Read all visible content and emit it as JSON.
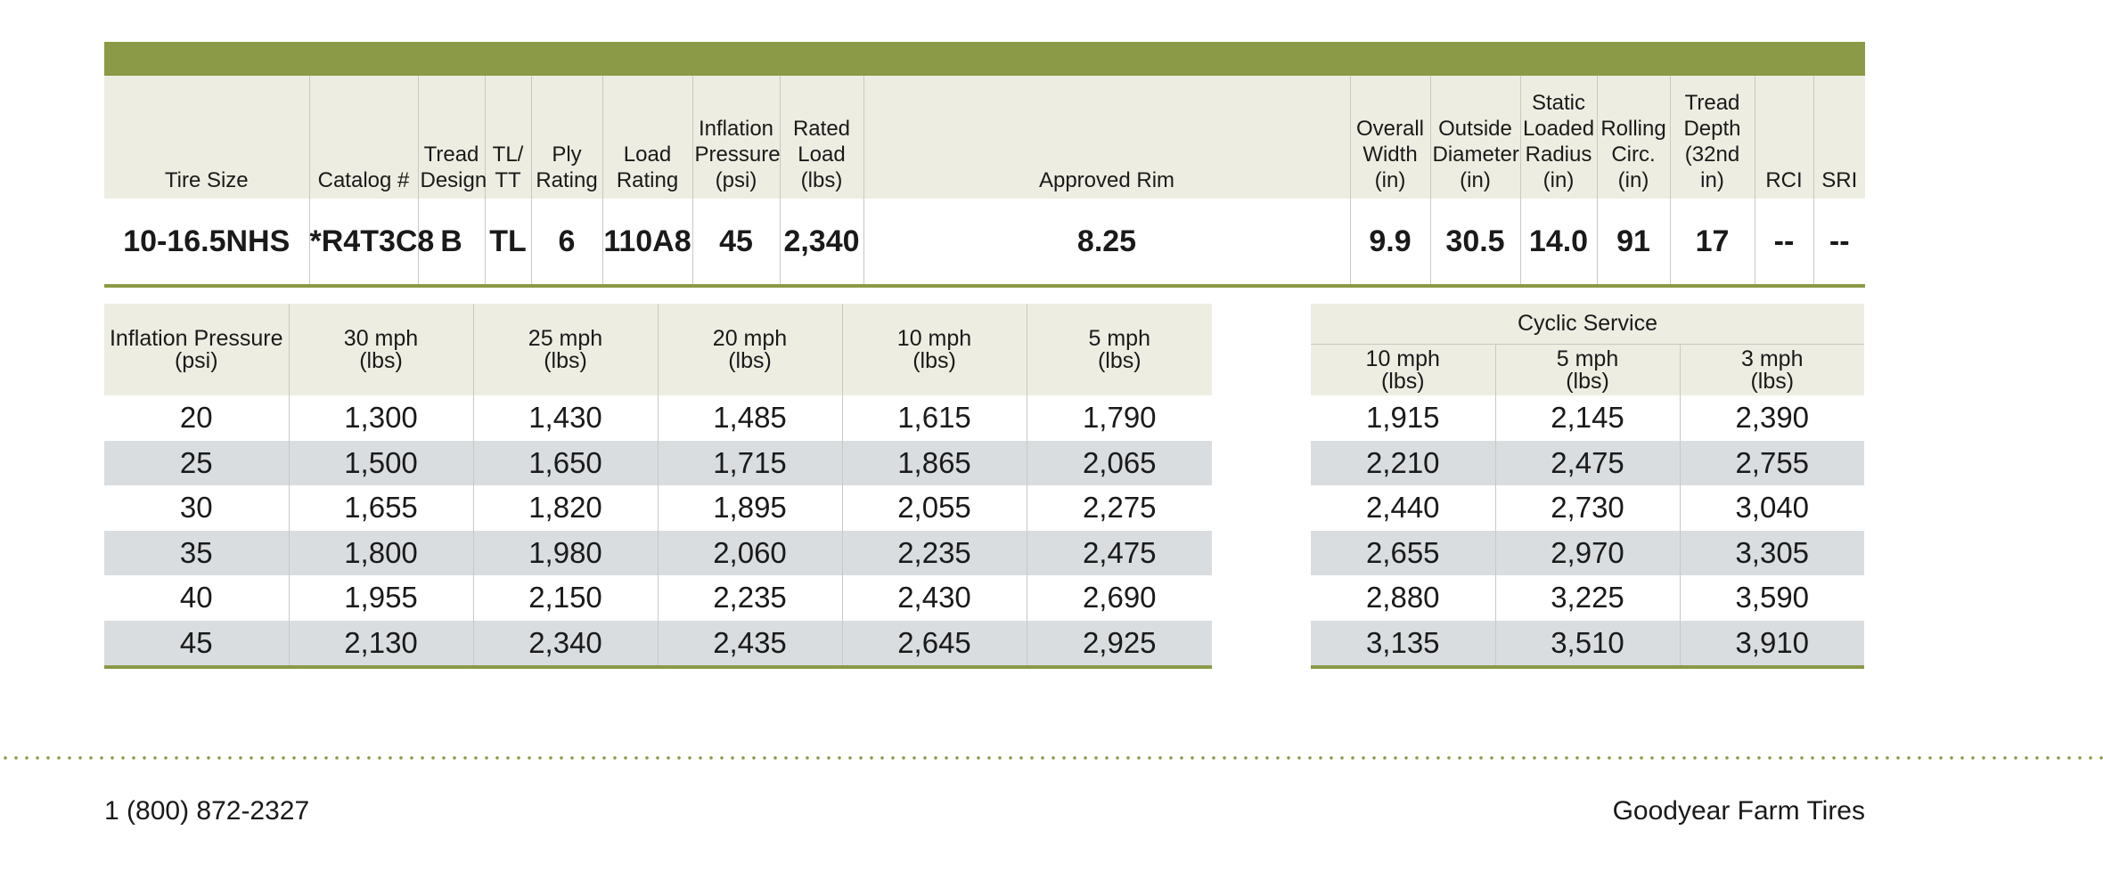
{
  "spec_table": {
    "headers": [
      [
        "Tire Size"
      ],
      [
        "Catalog #"
      ],
      [
        "Tread",
        "Design"
      ],
      [
        "TL/",
        "TT"
      ],
      [
        "Ply",
        "Rating"
      ],
      [
        "Load",
        "Rating"
      ],
      [
        "Inflation",
        "Pressure",
        "(psi)"
      ],
      [
        "Rated",
        "Load",
        "(lbs)"
      ],
      [
        "Approved Rim"
      ],
      [
        "Overall",
        "Width",
        "(in)"
      ],
      [
        "Outside",
        "Diameter",
        "(in)"
      ],
      [
        "Static",
        "Loaded",
        "Radius",
        "(in)"
      ],
      [
        "Rolling",
        "Circ.",
        "(in)"
      ],
      [
        "Tread",
        "Depth",
        "(32nd in)"
      ],
      [
        "RCI"
      ],
      [
        "SRI"
      ]
    ],
    "row": [
      "10-16.5NHS",
      "*R4T3C8",
      "B",
      "TL",
      "6",
      "110A8",
      "45",
      "2,340",
      "8.25",
      "9.9",
      "30.5",
      "14.0",
      "91",
      "17",
      "--",
      "--"
    ]
  },
  "load_table": {
    "headers": [
      [
        "Inflation Pressure",
        "(psi)"
      ],
      [
        "30 mph",
        "(lbs)"
      ],
      [
        "25 mph",
        "(lbs)"
      ],
      [
        "20 mph",
        "(lbs)"
      ],
      [
        "10 mph",
        "(lbs)"
      ],
      [
        "5 mph",
        "(lbs)"
      ]
    ],
    "rows": [
      [
        "20",
        "1,300",
        "1,430",
        "1,485",
        "1,615",
        "1,790"
      ],
      [
        "25",
        "1,500",
        "1,650",
        "1,715",
        "1,865",
        "2,065"
      ],
      [
        "30",
        "1,655",
        "1,820",
        "1,895",
        "2,055",
        "2,275"
      ],
      [
        "35",
        "1,800",
        "1,980",
        "2,060",
        "2,235",
        "2,475"
      ],
      [
        "40",
        "1,955",
        "2,150",
        "2,235",
        "2,430",
        "2,690"
      ],
      [
        "45",
        "2,130",
        "2,340",
        "2,435",
        "2,645",
        "2,925"
      ]
    ]
  },
  "cyclic_table": {
    "title": "Cyclic Service",
    "headers": [
      [
        "10 mph",
        "(lbs)"
      ],
      [
        "5 mph",
        "(lbs)"
      ],
      [
        "3 mph",
        "(lbs)"
      ]
    ],
    "rows": [
      [
        "1,915",
        "2,145",
        "2,390"
      ],
      [
        "2,210",
        "2,475",
        "2,755"
      ],
      [
        "2,440",
        "2,730",
        "3,040"
      ],
      [
        "2,655",
        "2,970",
        "3,305"
      ],
      [
        "2,880",
        "3,225",
        "3,590"
      ],
      [
        "3,135",
        "3,510",
        "3,910"
      ]
    ]
  },
  "footer": {
    "phone": "1 (800) 872-2327",
    "brand": "Goodyear Farm Tires"
  },
  "colors": {
    "accent_green": "#8b9a46",
    "header_bg": "#edede2",
    "stripe_gray": "#d9dde0"
  }
}
